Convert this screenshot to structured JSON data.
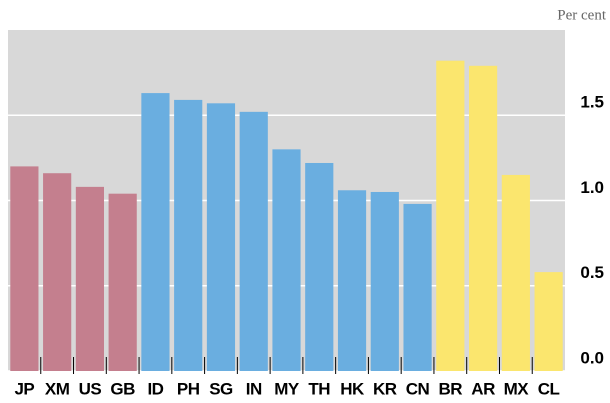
{
  "chart_data": {
    "type": "bar",
    "y_unit": "Per cent",
    "categories": [
      "JP",
      "XM",
      "US",
      "GB",
      "ID",
      "PH",
      "SG",
      "IN",
      "MY",
      "TH",
      "HK",
      "KR",
      "CN",
      "BR",
      "AR",
      "MX",
      "CL"
    ],
    "values": [
      1.2,
      1.16,
      1.08,
      1.04,
      1.63,
      1.59,
      1.57,
      1.52,
      1.3,
      1.22,
      1.06,
      1.05,
      0.98,
      1.82,
      1.79,
      1.15,
      0.58
    ],
    "colors": [
      "#c47f8e",
      "#c47f8e",
      "#c47f8e",
      "#c47f8e",
      "#6aaee0",
      "#6aaee0",
      "#6aaee0",
      "#6aaee0",
      "#6aaee0",
      "#6aaee0",
      "#6aaee0",
      "#6aaee0",
      "#6aaee0",
      "#fbe66e",
      "#fbe66e",
      "#fbe66e",
      "#fbe66e"
    ],
    "ylim": [
      0,
      2
    ],
    "yticks": [
      {
        "value": 0,
        "label": "0.0"
      },
      {
        "value": 0.5,
        "label": "0.5"
      },
      {
        "value": 1,
        "label": "1.0"
      },
      {
        "value": 1.5,
        "label": "1.5"
      }
    ],
    "grid": true
  }
}
